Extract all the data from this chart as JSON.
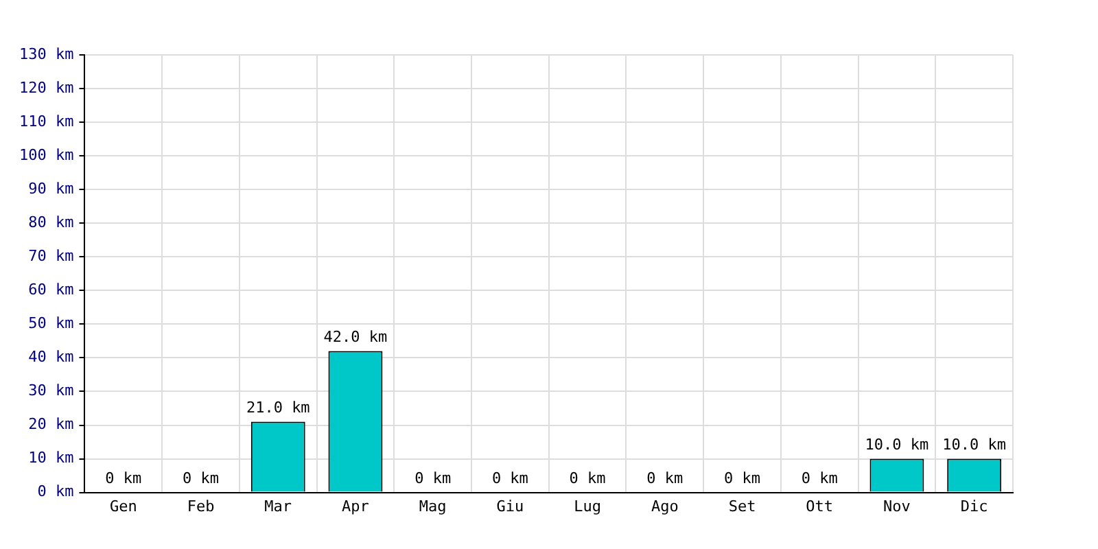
{
  "chart_data": {
    "type": "bar",
    "categories": [
      "Gen",
      "Feb",
      "Mar",
      "Apr",
      "Mag",
      "Giu",
      "Lug",
      "Ago",
      "Set",
      "Ott",
      "Nov",
      "Dic"
    ],
    "values": [
      0,
      0,
      21,
      42,
      0,
      0,
      0,
      0,
      0,
      0,
      10,
      10
    ],
    "value_labels": [
      "0 km",
      "0 km",
      "21.0 km",
      "42.0 km",
      "0 km",
      "0 km",
      "0 km",
      "0 km",
      "0 km",
      "0 km",
      "10.0 km",
      "10.0 km"
    ],
    "color": "#00c8c8",
    "ylim": [
      0,
      130
    ],
    "yticks": [
      {
        "value": 0,
        "label": "0 km"
      },
      {
        "value": 10,
        "label": "10 km"
      },
      {
        "value": 20,
        "label": "20 km"
      },
      {
        "value": 30,
        "label": "30 km"
      },
      {
        "value": 40,
        "label": "40 km"
      },
      {
        "value": 50,
        "label": "50 km"
      },
      {
        "value": 60,
        "label": "60 km"
      },
      {
        "value": 70,
        "label": "70 km"
      },
      {
        "value": 80,
        "label": "80 km"
      },
      {
        "value": 90,
        "label": "90 km"
      },
      {
        "value": 100,
        "label": "100 km"
      },
      {
        "value": 110,
        "label": "110 km"
      },
      {
        "value": 120,
        "label": "120 km"
      },
      {
        "value": 130,
        "label": "130 km"
      }
    ],
    "grid": true
  }
}
